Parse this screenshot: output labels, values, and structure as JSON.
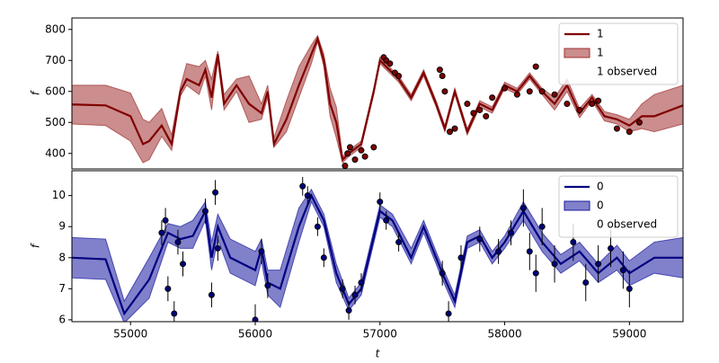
{
  "chart_data": [
    {
      "type": "line",
      "ylabel": "f",
      "xlim": [
        54530,
        59430
      ],
      "ylim": [
        350,
        837
      ],
      "yticks": [
        400,
        500,
        600,
        700,
        800
      ],
      "legend": "upper right",
      "x": [
        54530,
        54800,
        55000,
        55100,
        55150,
        55250,
        55330,
        55400,
        55450,
        55550,
        55600,
        55650,
        55700,
        55750,
        55850,
        55950,
        56050,
        56100,
        56150,
        56250,
        56350,
        56450,
        56500,
        56550,
        56600,
        56650,
        56700,
        56750,
        56850,
        56950,
        57000,
        57050,
        57150,
        57250,
        57350,
        57450,
        57520,
        57600,
        57700,
        57800,
        57900,
        58000,
        58100,
        58200,
        58300,
        58400,
        58500,
        58600,
        58700,
        58800,
        58900,
        59000,
        59100,
        59200,
        59430
      ],
      "series": [
        {
          "name": "1",
          "color": "#800000",
          "values": [
            558,
            555,
            520,
            430,
            440,
            490,
            430,
            600,
            640,
            620,
            670,
            580,
            720,
            560,
            620,
            560,
            530,
            600,
            430,
            510,
            620,
            720,
            770,
            700,
            560,
            500,
            380,
            400,
            430,
            600,
            700,
            680,
            640,
            580,
            660,
            560,
            480,
            600,
            470,
            560,
            540,
            620,
            600,
            650,
            600,
            560,
            620,
            530,
            580,
            520,
            510,
            490,
            520,
            520,
            555
          ]
        }
      ],
      "band": {
        "name": "1",
        "color": "#a03030",
        "lower": [
          495,
          490,
          440,
          370,
          380,
          455,
          410,
          585,
          620,
          590,
          650,
          540,
          700,
          540,
          600,
          500,
          510,
          580,
          420,
          470,
          580,
          690,
          760,
          680,
          520,
          450,
          370,
          390,
          420,
          590,
          690,
          670,
          630,
          570,
          650,
          550,
          470,
          590,
          460,
          550,
          530,
          610,
          590,
          640,
          590,
          540,
          600,
          515,
          570,
          505,
          495,
          470,
          480,
          470,
          495
        ],
        "upper": [
          620,
          620,
          595,
          510,
          500,
          545,
          460,
          615,
          690,
          680,
          700,
          640,
          730,
          590,
          640,
          650,
          560,
          620,
          450,
          570,
          680,
          750,
          780,
          720,
          610,
          550,
          390,
          410,
          440,
          610,
          710,
          690,
          650,
          590,
          670,
          570,
          490,
          610,
          480,
          570,
          550,
          630,
          610,
          660,
          610,
          580,
          640,
          545,
          590,
          535,
          525,
          510,
          560,
          590,
          620
        ]
      },
      "observed": {
        "name": "1 observed",
        "color": "#800000",
        "x": [
          56720,
          56740,
          56760,
          56800,
          56850,
          56880,
          56950,
          57030,
          57050,
          57080,
          57120,
          57150,
          57480,
          57500,
          57520,
          57560,
          57600,
          57700,
          57750,
          57800,
          57850,
          57900,
          58000,
          58100,
          58200,
          58250,
          58300,
          58400,
          58500,
          58600,
          58700,
          58750,
          58900,
          59000,
          59080
        ],
        "values": [
          360,
          400,
          420,
          380,
          410,
          390,
          420,
          710,
          700,
          690,
          660,
          650,
          670,
          650,
          600,
          470,
          480,
          560,
          530,
          540,
          520,
          580,
          610,
          590,
          600,
          680,
          600,
          590,
          560,
          540,
          560,
          570,
          480,
          470,
          500
        ]
      }
    },
    {
      "type": "line",
      "ylabel": "f",
      "xlabel": "t",
      "xlim": [
        54530,
        59430
      ],
      "ylim": [
        5.94,
        10.8
      ],
      "xticks": [
        55000,
        56000,
        57000,
        58000,
        59000
      ],
      "yticks": [
        6,
        7,
        8,
        9,
        10
      ],
      "legend": "upper right",
      "x": [
        54530,
        54800,
        54950,
        55150,
        55300,
        55400,
        55500,
        55600,
        55650,
        55700,
        55800,
        56000,
        56050,
        56100,
        56200,
        56350,
        56450,
        56550,
        56650,
        56750,
        56850,
        57000,
        57100,
        57250,
        57350,
        57500,
        57600,
        57700,
        57800,
        57900,
        58000,
        58150,
        58300,
        58450,
        58600,
        58750,
        58900,
        59000,
        59200,
        59430
      ],
      "series": [
        {
          "name": "0",
          "color": "#000080",
          "values": [
            8.0,
            7.95,
            6.2,
            7.3,
            8.8,
            8.6,
            8.7,
            9.5,
            8.0,
            9.0,
            8.0,
            7.6,
            8.3,
            7.2,
            7.0,
            9.0,
            10.0,
            9.2,
            7.5,
            6.5,
            7.0,
            9.5,
            9.2,
            8.0,
            9.0,
            7.5,
            6.6,
            8.5,
            8.7,
            8.0,
            8.5,
            9.5,
            8.5,
            7.8,
            8.2,
            7.5,
            8.0,
            7.5,
            8.0,
            8.0
          ]
        }
      ],
      "band": {
        "name": "0",
        "color": "#1a1aa0",
        "lower": [
          7.35,
          7.3,
          5.9,
          6.7,
          8.5,
          8.3,
          8.3,
          9.2,
          7.6,
          8.6,
          7.5,
          7.1,
          7.9,
          6.8,
          6.4,
          8.5,
          9.8,
          9.0,
          7.2,
          6.3,
          6.8,
          9.3,
          9.0,
          7.8,
          8.8,
          7.3,
          6.4,
          8.3,
          8.5,
          7.8,
          8.3,
          9.2,
          8.2,
          7.5,
          7.9,
          7.2,
          7.6,
          7.1,
          7.5,
          7.35
        ],
        "upper": [
          8.65,
          8.6,
          6.6,
          8.0,
          9.1,
          9.0,
          9.2,
          9.8,
          8.5,
          9.4,
          8.6,
          8.2,
          8.6,
          7.6,
          7.6,
          9.6,
          10.2,
          9.4,
          7.8,
          6.7,
          7.2,
          9.7,
          9.4,
          8.3,
          9.2,
          7.7,
          6.8,
          8.7,
          8.9,
          8.2,
          8.7,
          9.8,
          8.8,
          8.1,
          8.5,
          7.8,
          8.4,
          7.9,
          8.5,
          8.65
        ]
      },
      "observed": {
        "name": "0 observed",
        "color": "#000080",
        "x": [
          55250,
          55280,
          55300,
          55350,
          55380,
          55420,
          55600,
          55650,
          55680,
          55700,
          56000,
          56050,
          56100,
          56380,
          56420,
          56500,
          56550,
          56700,
          56750,
          56800,
          56850,
          57000,
          57050,
          57150,
          57500,
          57550,
          57650,
          57800,
          57950,
          58050,
          58150,
          58200,
          58250,
          58300,
          58400,
          58550,
          58650,
          58750,
          58850,
          58950,
          59000
        ],
        "values": [
          8.8,
          9.2,
          7.0,
          6.2,
          8.5,
          7.8,
          9.5,
          6.8,
          10.1,
          8.3,
          6.0,
          8.2,
          7.1,
          10.3,
          10.0,
          9.0,
          8.0,
          7.0,
          6.3,
          6.8,
          7.2,
          9.8,
          9.2,
          8.5,
          7.5,
          6.2,
          8.0,
          8.6,
          8.2,
          8.8,
          9.6,
          8.2,
          7.5,
          9.0,
          7.8,
          8.5,
          7.2,
          7.8,
          8.3,
          7.6,
          7.0
        ],
        "errors": [
          0.4,
          0.4,
          0.4,
          0.4,
          0.4,
          0.4,
          0.4,
          0.4,
          0.4,
          0.4,
          0.5,
          0.4,
          0.4,
          0.3,
          0.3,
          0.3,
          0.3,
          0.3,
          0.3,
          0.3,
          0.3,
          0.3,
          0.3,
          0.3,
          0.4,
          0.4,
          0.4,
          0.4,
          0.4,
          0.4,
          0.6,
          0.6,
          0.6,
          0.6,
          0.6,
          0.6,
          0.6,
          0.6,
          0.6,
          0.6,
          0.6
        ]
      }
    }
  ]
}
